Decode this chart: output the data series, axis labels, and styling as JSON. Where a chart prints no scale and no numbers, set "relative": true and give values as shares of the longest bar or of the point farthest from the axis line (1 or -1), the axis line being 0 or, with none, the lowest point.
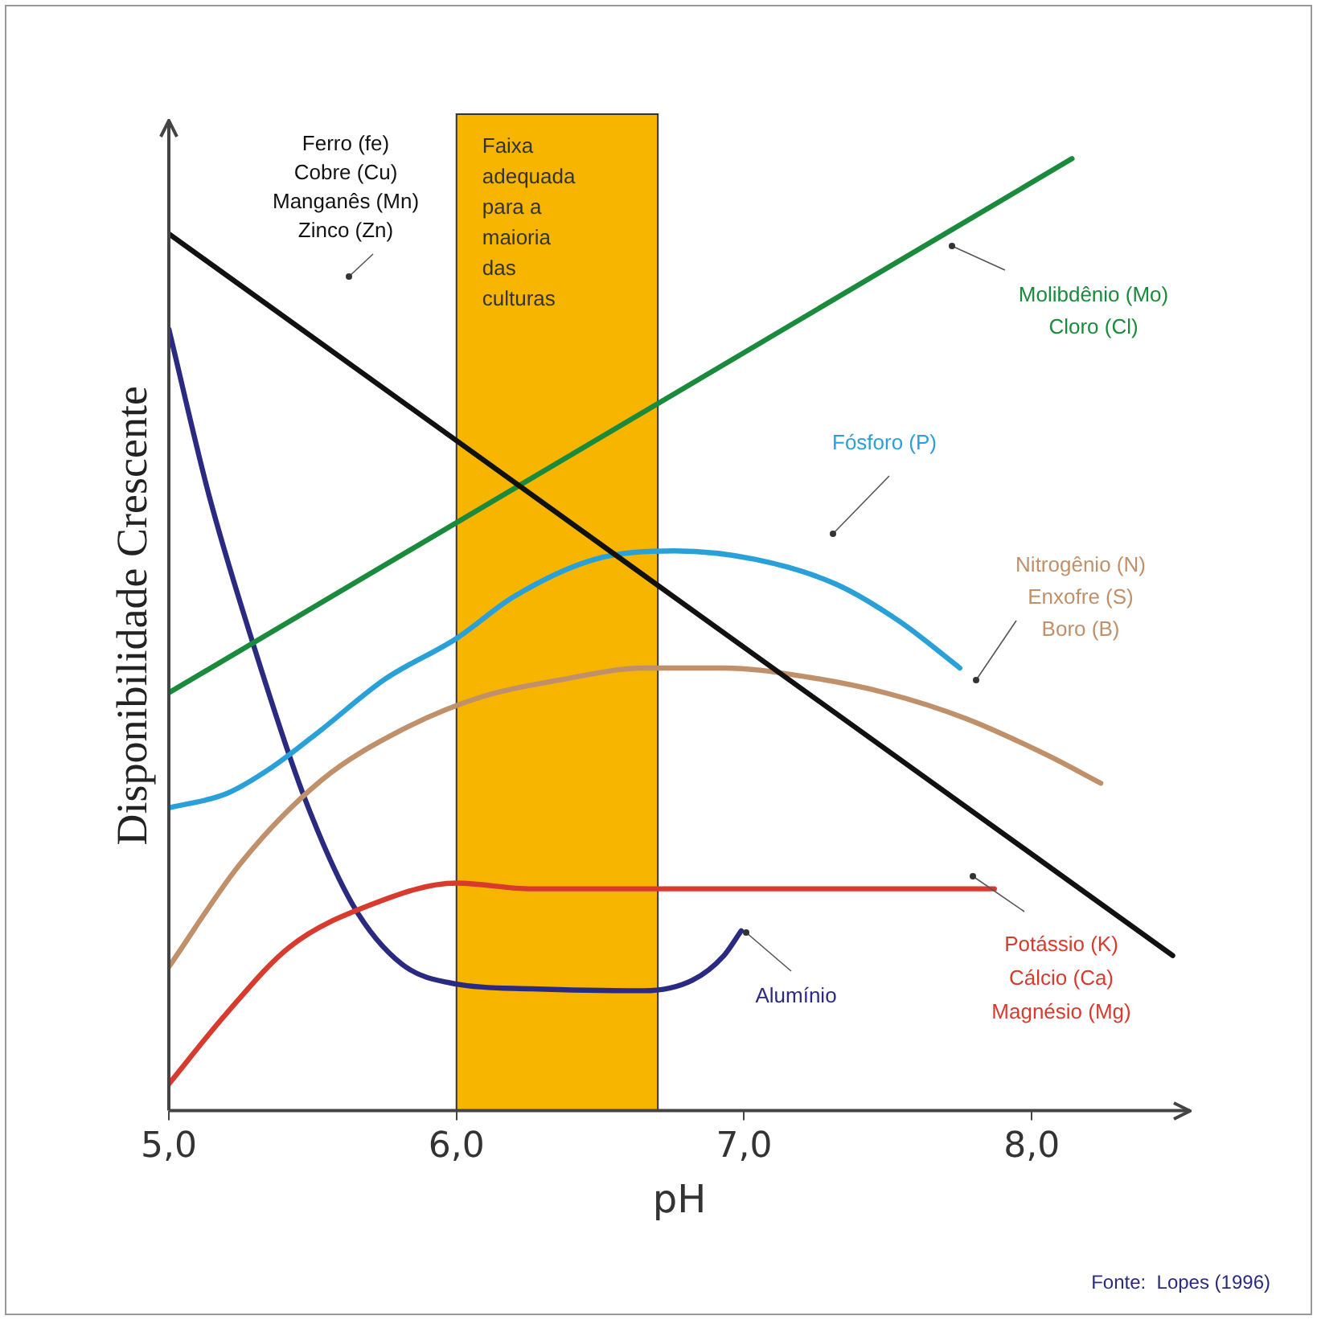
{
  "chart_data": {
    "type": "line",
    "relative": true,
    "xlabel": "pH",
    "ylabel": "Disponibilidade Crescente",
    "xlim": [
      5,
      8.55
    ],
    "xticks": [
      {
        "value": 5,
        "label": "5,0"
      },
      {
        "value": 6,
        "label": "6,0"
      },
      {
        "value": 7,
        "label": "7,0"
      },
      {
        "value": 8,
        "label": "8,0"
      }
    ],
    "legend": false,
    "grid": false,
    "marker": "none",
    "line_style": "solid",
    "bands": [
      {
        "axis": "x",
        "from": 6.0,
        "to": 6.7,
        "label": "Faixa\nadequada\npara a\nmaioria\ndas\nculturas",
        "color": "#f7b500"
      }
    ],
    "annotations": [
      "Fonte:  Lopes (1996)"
    ],
    "series": [
      {
        "name": "Ferro (fe)\nCobre (Cu)\nManganês (Mn)\nZinco (Zn)",
        "color": "#111111",
        "x": [
          5.0,
          8.49
        ],
        "values": [
          0.921,
          0.163
        ]
      },
      {
        "name": "Molibdênio (Mo)\nCloro (Cl)",
        "color": "#1a8a3c",
        "x": [
          5.0,
          8.14
        ],
        "values": [
          0.439,
          1.0
        ]
      },
      {
        "name": "Fósforo (P)",
        "color": "#2aa0d8",
        "x": [
          5.0,
          5.2,
          5.36,
          5.53,
          5.75,
          6.0,
          6.2,
          6.48,
          6.76,
          7.04,
          7.32,
          7.54,
          7.75
        ],
        "values": [
          0.318,
          0.333,
          0.361,
          0.4,
          0.453,
          0.496,
          0.54,
          0.579,
          0.588,
          0.579,
          0.553,
          0.514,
          0.465
        ]
      },
      {
        "name": "Nitrogênio (N)\nEnxofre (S)\nBoro (B)",
        "color": "#c0906a",
        "x": [
          5.0,
          5.25,
          5.53,
          5.81,
          6.09,
          6.37,
          6.65,
          6.93,
          7.21,
          7.49,
          7.77,
          8.05,
          8.24
        ],
        "values": [
          0.151,
          0.26,
          0.347,
          0.4,
          0.435,
          0.453,
          0.465,
          0.465,
          0.456,
          0.439,
          0.412,
          0.374,
          0.344
        ]
      },
      {
        "name": "Potássio (K)\nCálcio (Ca)\nMagnésio (Mg)",
        "color": "#d83a2e",
        "x": [
          5.0,
          5.2,
          5.42,
          5.7,
          6.0,
          6.26,
          6.65,
          7.21,
          7.87
        ],
        "values": [
          0.028,
          0.102,
          0.172,
          0.216,
          0.239,
          0.233,
          0.233,
          0.233,
          0.233
        ]
      },
      {
        "name": "Alumínio",
        "color": "#2a2a80",
        "x": [
          5.0,
          5.14,
          5.31,
          5.47,
          5.64,
          5.81,
          6.0,
          6.26,
          6.65,
          6.82,
          6.93,
          6.99
        ],
        "values": [
          0.821,
          0.646,
          0.474,
          0.33,
          0.216,
          0.154,
          0.133,
          0.128,
          0.126,
          0.137,
          0.163,
          0.189
        ]
      }
    ]
  }
}
